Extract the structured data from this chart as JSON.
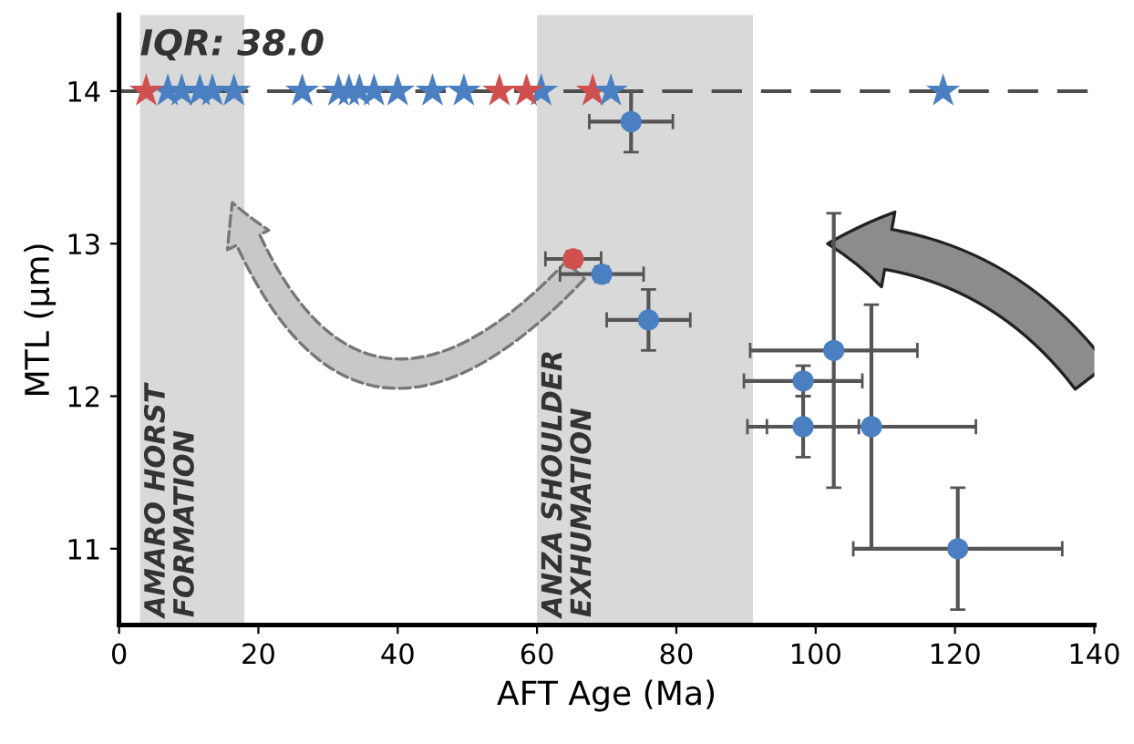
{
  "chart_data": {
    "type": "scatter",
    "xlabel": "AFT Age (Ma)",
    "ylabel": "MTL (µm)",
    "xlim": [
      0,
      140
    ],
    "xticks": [
      0,
      20,
      40,
      60,
      80,
      100,
      120,
      140
    ],
    "ylim": [
      10.5,
      14.5
    ],
    "yticks": [
      11,
      12,
      13,
      14
    ],
    "grid": false,
    "marker": "circle",
    "bands": [
      {
        "axis": "x",
        "from": 3,
        "to": 18,
        "label": "AMARO HORST\nFORMATION",
        "color": "#d9d9d9"
      },
      {
        "axis": "x",
        "from": 60,
        "to": 91,
        "label": "ANZA SHOULDER\nEXHUMATION",
        "color": "#d9d9d9"
      }
    ],
    "ref_lines": [
      {
        "axis": "y",
        "value": 14,
        "label": null,
        "color": "#4d4d4d",
        "line_style": "dashed"
      }
    ],
    "annotations": [
      {
        "text": "IQR: 38.0",
        "x": 3,
        "y": 14.3
      }
    ],
    "series": [
      {
        "marker": "star",
        "color": "#4a7fc1",
        "x": [
          7,
          11.6,
          13.4,
          16.5,
          31.5,
          33,
          34.5,
          36.6,
          40,
          45,
          60.6,
          118.3
        ],
        "values": [
          14,
          14,
          14,
          14,
          14,
          14,
          14,
          14,
          14,
          14,
          14,
          14
        ]
      },
      {
        "marker": "star",
        "color": "#d0504f",
        "x": [
          3.9,
          54.6,
          58.5,
          68
        ],
        "values": [
          14,
          14,
          14,
          14
        ]
      },
      {
        "marker": "star",
        "color": "#4a7fc1",
        "x": [
          9,
          26.3,
          49.5,
          70.6
        ],
        "values": [
          14,
          14,
          14,
          14
        ]
      },
      {
        "color": "#d0504f",
        "x": [
          65.2
        ],
        "values": [
          12.9
        ],
        "xerrors": [
          4
        ],
        "errors": [
          0.05
        ]
      },
      {
        "color": "#4a7fc1",
        "x": [
          69.3,
          76,
          73.5,
          102.6,
          98.2,
          98.2,
          108,
          120.4
        ],
        "values": [
          12.8,
          12.5,
          13.8,
          12.3,
          12.1,
          11.8,
          11.8,
          11.0
        ],
        "xerrors": [
          6,
          6,
          6,
          12,
          8.5,
          8,
          15,
          15
        ],
        "errors": [
          0.05,
          0.2,
          0.2,
          0.9,
          0.1,
          0.2,
          0.8,
          0.4
        ]
      }
    ]
  }
}
